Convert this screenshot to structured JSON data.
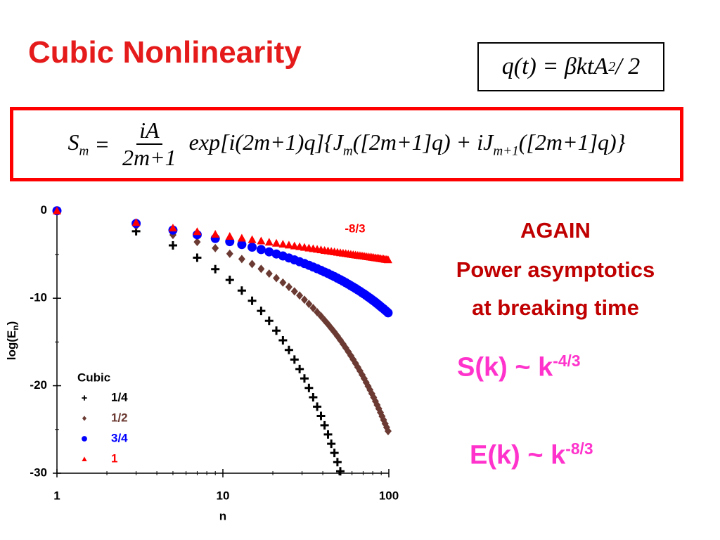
{
  "slide": {
    "title": "Cubic Nonlinearity",
    "qformula": {
      "main": "q(t) = βktA",
      "sup": "2",
      "end": " / 2"
    },
    "sformula": {
      "lhs": "S",
      "lhs_sub": "m",
      "eq": "=",
      "num": "iA",
      "den": "2m+1",
      "exp": "exp[i(2m+1)q]{J",
      "j1_sub": "m",
      "mid": "([2m+1]q) + iJ",
      "j2_sub": "m+1",
      "end": "([2m+1]q)}"
    },
    "notes": [
      "AGAIN",
      "Power asymptotics",
      "at breaking time"
    ],
    "s_law": {
      "main": "S(k) ~ k",
      "sup": "-4/3"
    },
    "e_law": {
      "main": "E(k) ~ k",
      "sup": "-8/3"
    }
  },
  "chart_data": {
    "type": "scatter",
    "log_x": true,
    "xlabel": "n",
    "ylabel": [
      "log(E",
      "n",
      ")"
    ],
    "annotation": "-8/3",
    "annotation_color": "#ff0000",
    "legend_title": "Cubic",
    "legend": "lower left",
    "xlim": [
      1,
      100
    ],
    "xticks": [
      1,
      10,
      100
    ],
    "xminorticks": [
      2,
      3,
      4,
      5,
      6,
      7,
      8,
      9,
      20,
      30,
      40,
      50,
      60,
      70,
      80,
      90
    ],
    "ylim": [
      -30,
      0.3
    ],
    "yticks": [
      0,
      -10,
      -20,
      -30
    ],
    "yminorticks": [
      -5,
      -15,
      -25
    ],
    "x": [
      1,
      3,
      5,
      7,
      9,
      11,
      13,
      15,
      17,
      19,
      21,
      23,
      25,
      27,
      29,
      31,
      33,
      35,
      37,
      39,
      41,
      43,
      45,
      47,
      49,
      51,
      53,
      55,
      57,
      59,
      61,
      63,
      65,
      67,
      69,
      71,
      73,
      75,
      77,
      79,
      81,
      83,
      85,
      87,
      89,
      91,
      93,
      95,
      97,
      99
    ],
    "series": [
      {
        "name": "1/4",
        "color": "#000000",
        "marker": "plus",
        "values": [
          0,
          -2.34,
          -3.96,
          -5.37,
          -6.67,
          -7.91,
          -9.12,
          -10.29,
          -11.44,
          -12.58,
          -13.7,
          -14.81,
          -15.91,
          -17.01,
          -18.09,
          -19.17,
          -20.25,
          -21.32,
          -22.39,
          -23.45,
          -24.52,
          -25.57,
          -26.63,
          -27.68,
          -28.73,
          -29.78,
          null,
          null,
          null,
          null,
          null,
          null,
          null,
          null,
          null,
          null,
          null,
          null,
          null,
          null,
          null,
          null,
          null,
          null,
          null,
          null,
          null,
          null,
          null,
          null
        ]
      },
      {
        "name": "1/2",
        "color": "#6b3a32",
        "marker": "diamond",
        "values": [
          0,
          -1.74,
          -2.76,
          -3.57,
          -4.27,
          -4.91,
          -5.52,
          -6.09,
          -6.64,
          -7.18,
          -7.7,
          -8.21,
          -8.71,
          -9.21,
          -9.69,
          -10.17,
          -10.65,
          -11.12,
          -11.59,
          -12.05,
          -12.52,
          -12.97,
          -13.43,
          -13.88,
          -14.33,
          -14.78,
          -15.23,
          -15.67,
          -16.12,
          -16.56,
          -17.0,
          -17.44,
          -17.88,
          -18.31,
          -18.75,
          -19.18,
          -19.62,
          -20.05,
          -20.48,
          -20.91,
          -21.34,
          -21.77,
          -22.2,
          -22.63,
          -23.06,
          -23.49,
          -23.91,
          -24.34,
          -24.76,
          -25.19
        ]
      },
      {
        "name": "3/4",
        "color": "#0000ff",
        "marker": "circle",
        "values": [
          0,
          -1.46,
          -2.21,
          -2.74,
          -3.17,
          -3.53,
          -3.86,
          -4.16,
          -4.43,
          -4.7,
          -4.94,
          -5.17,
          -5.4,
          -5.62,
          -5.83,
          -6.03,
          -6.23,
          -6.43,
          -6.62,
          -6.81,
          -7.0,
          -7.17,
          -7.36,
          -7.53,
          -7.71,
          -7.88,
          -8.05,
          -8.22,
          -8.39,
          -8.56,
          -8.72,
          -8.88,
          -9.05,
          -9.2,
          -9.37,
          -9.52,
          -9.68,
          -9.84,
          -9.99,
          -10.15,
          -10.3,
          -10.45,
          -10.61,
          -10.76,
          -10.92,
          -11.07,
          -11.21,
          -11.37,
          -11.51,
          -11.67
        ]
      },
      {
        "name": "1",
        "color": "#ff0000",
        "marker": "triangle",
        "values": [
          0,
          -1.34,
          -1.96,
          -2.37,
          -2.67,
          -2.91,
          -3.12,
          -3.29,
          -3.44,
          -3.58,
          -3.7,
          -3.81,
          -3.91,
          -4.01,
          -4.09,
          -4.17,
          -4.25,
          -4.32,
          -4.39,
          -4.45,
          -4.52,
          -4.57,
          -4.63,
          -4.68,
          -4.73,
          -4.78,
          -4.83,
          -4.87,
          -4.92,
          -4.96,
          -5.0,
          -5.04,
          -5.08,
          -5.11,
          -5.15,
          -5.18,
          -5.22,
          -5.25,
          -5.28,
          -5.31,
          -5.34,
          -5.37,
          -5.4,
          -5.43,
          -5.46,
          -5.49,
          -5.51,
          -5.54,
          -5.56,
          -5.59
        ]
      }
    ]
  }
}
